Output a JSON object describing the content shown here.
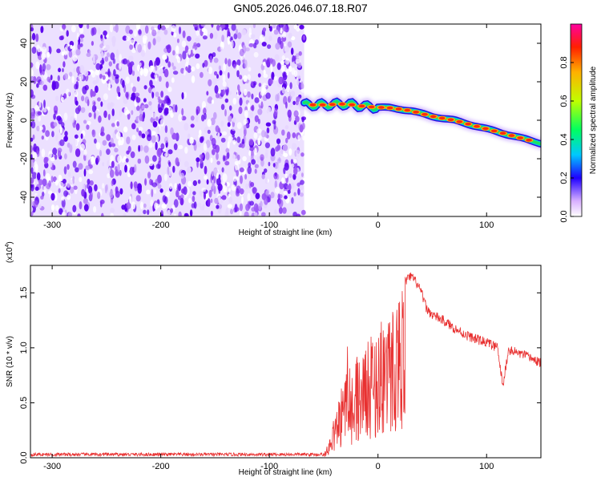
{
  "title": "GN05.2026.046.07.18.R07",
  "colors": {
    "snr_line": "#e83030",
    "axis": "#000000"
  },
  "chart_data": [
    {
      "type": "heatmap",
      "name": "spectrogram",
      "xlabel": "Height of straight line (km)",
      "ylabel": "Frequency (Hz)",
      "xlim": [
        -320,
        150
      ],
      "ylim": [
        -50,
        50
      ],
      "xticks": [
        -300,
        -200,
        -100,
        0,
        100
      ],
      "yticks": [
        -40,
        -20,
        0,
        20,
        40
      ],
      "noise_region_x": [
        -320,
        -68
      ],
      "signal_track": {
        "x": [
          -68,
          -50,
          -30,
          -10,
          10,
          30,
          50,
          70,
          90,
          110,
          130,
          150
        ],
        "y": [
          8,
          8,
          8.5,
          7,
          6.5,
          5,
          2,
          0,
          -3,
          -6,
          -9,
          -12
        ]
      },
      "colorbar": {
        "label": "Normalized spectral amplitude",
        "range": [
          0,
          1
        ],
        "ticks": [
          "0.0",
          "0.2",
          "0.4",
          "0.6",
          "0.8"
        ]
      }
    },
    {
      "type": "line",
      "name": "snr",
      "xlabel": "Height of straight line (km)",
      "ylabel": "SNR (10 * v/v)",
      "scale_label": "(x10",
      "scale_exp": "4",
      "scale_close": ")",
      "xlim": [
        -320,
        150
      ],
      "ylim": [
        0,
        17500
      ],
      "xticks": [
        -300,
        -200,
        -100,
        0,
        100
      ],
      "yticks": [
        0,
        5000,
        10000,
        15000
      ],
      "ytick_labels": [
        "0.0",
        "0.5",
        "1.0",
        "1.5"
      ],
      "envelope": {
        "x": [
          -320,
          -50,
          -45,
          -40,
          -35,
          -30,
          -25,
          -20,
          -15,
          -10,
          -5,
          0,
          5,
          10,
          15,
          20,
          25,
          30,
          35,
          40,
          45,
          50,
          60,
          70,
          80,
          90,
          100,
          110,
          115,
          120,
          130,
          140,
          150
        ],
        "y": [
          300,
          300,
          1500,
          4000,
          6000,
          8500,
          7500,
          9500,
          10000,
          10500,
          11000,
          12000,
          13500,
          13000,
          14500,
          15500,
          16000,
          16500,
          16000,
          15000,
          13500,
          13000,
          12500,
          11800,
          11200,
          10800,
          10500,
          10000,
          6500,
          9800,
          9500,
          9100,
          8600
        ]
      }
    }
  ]
}
